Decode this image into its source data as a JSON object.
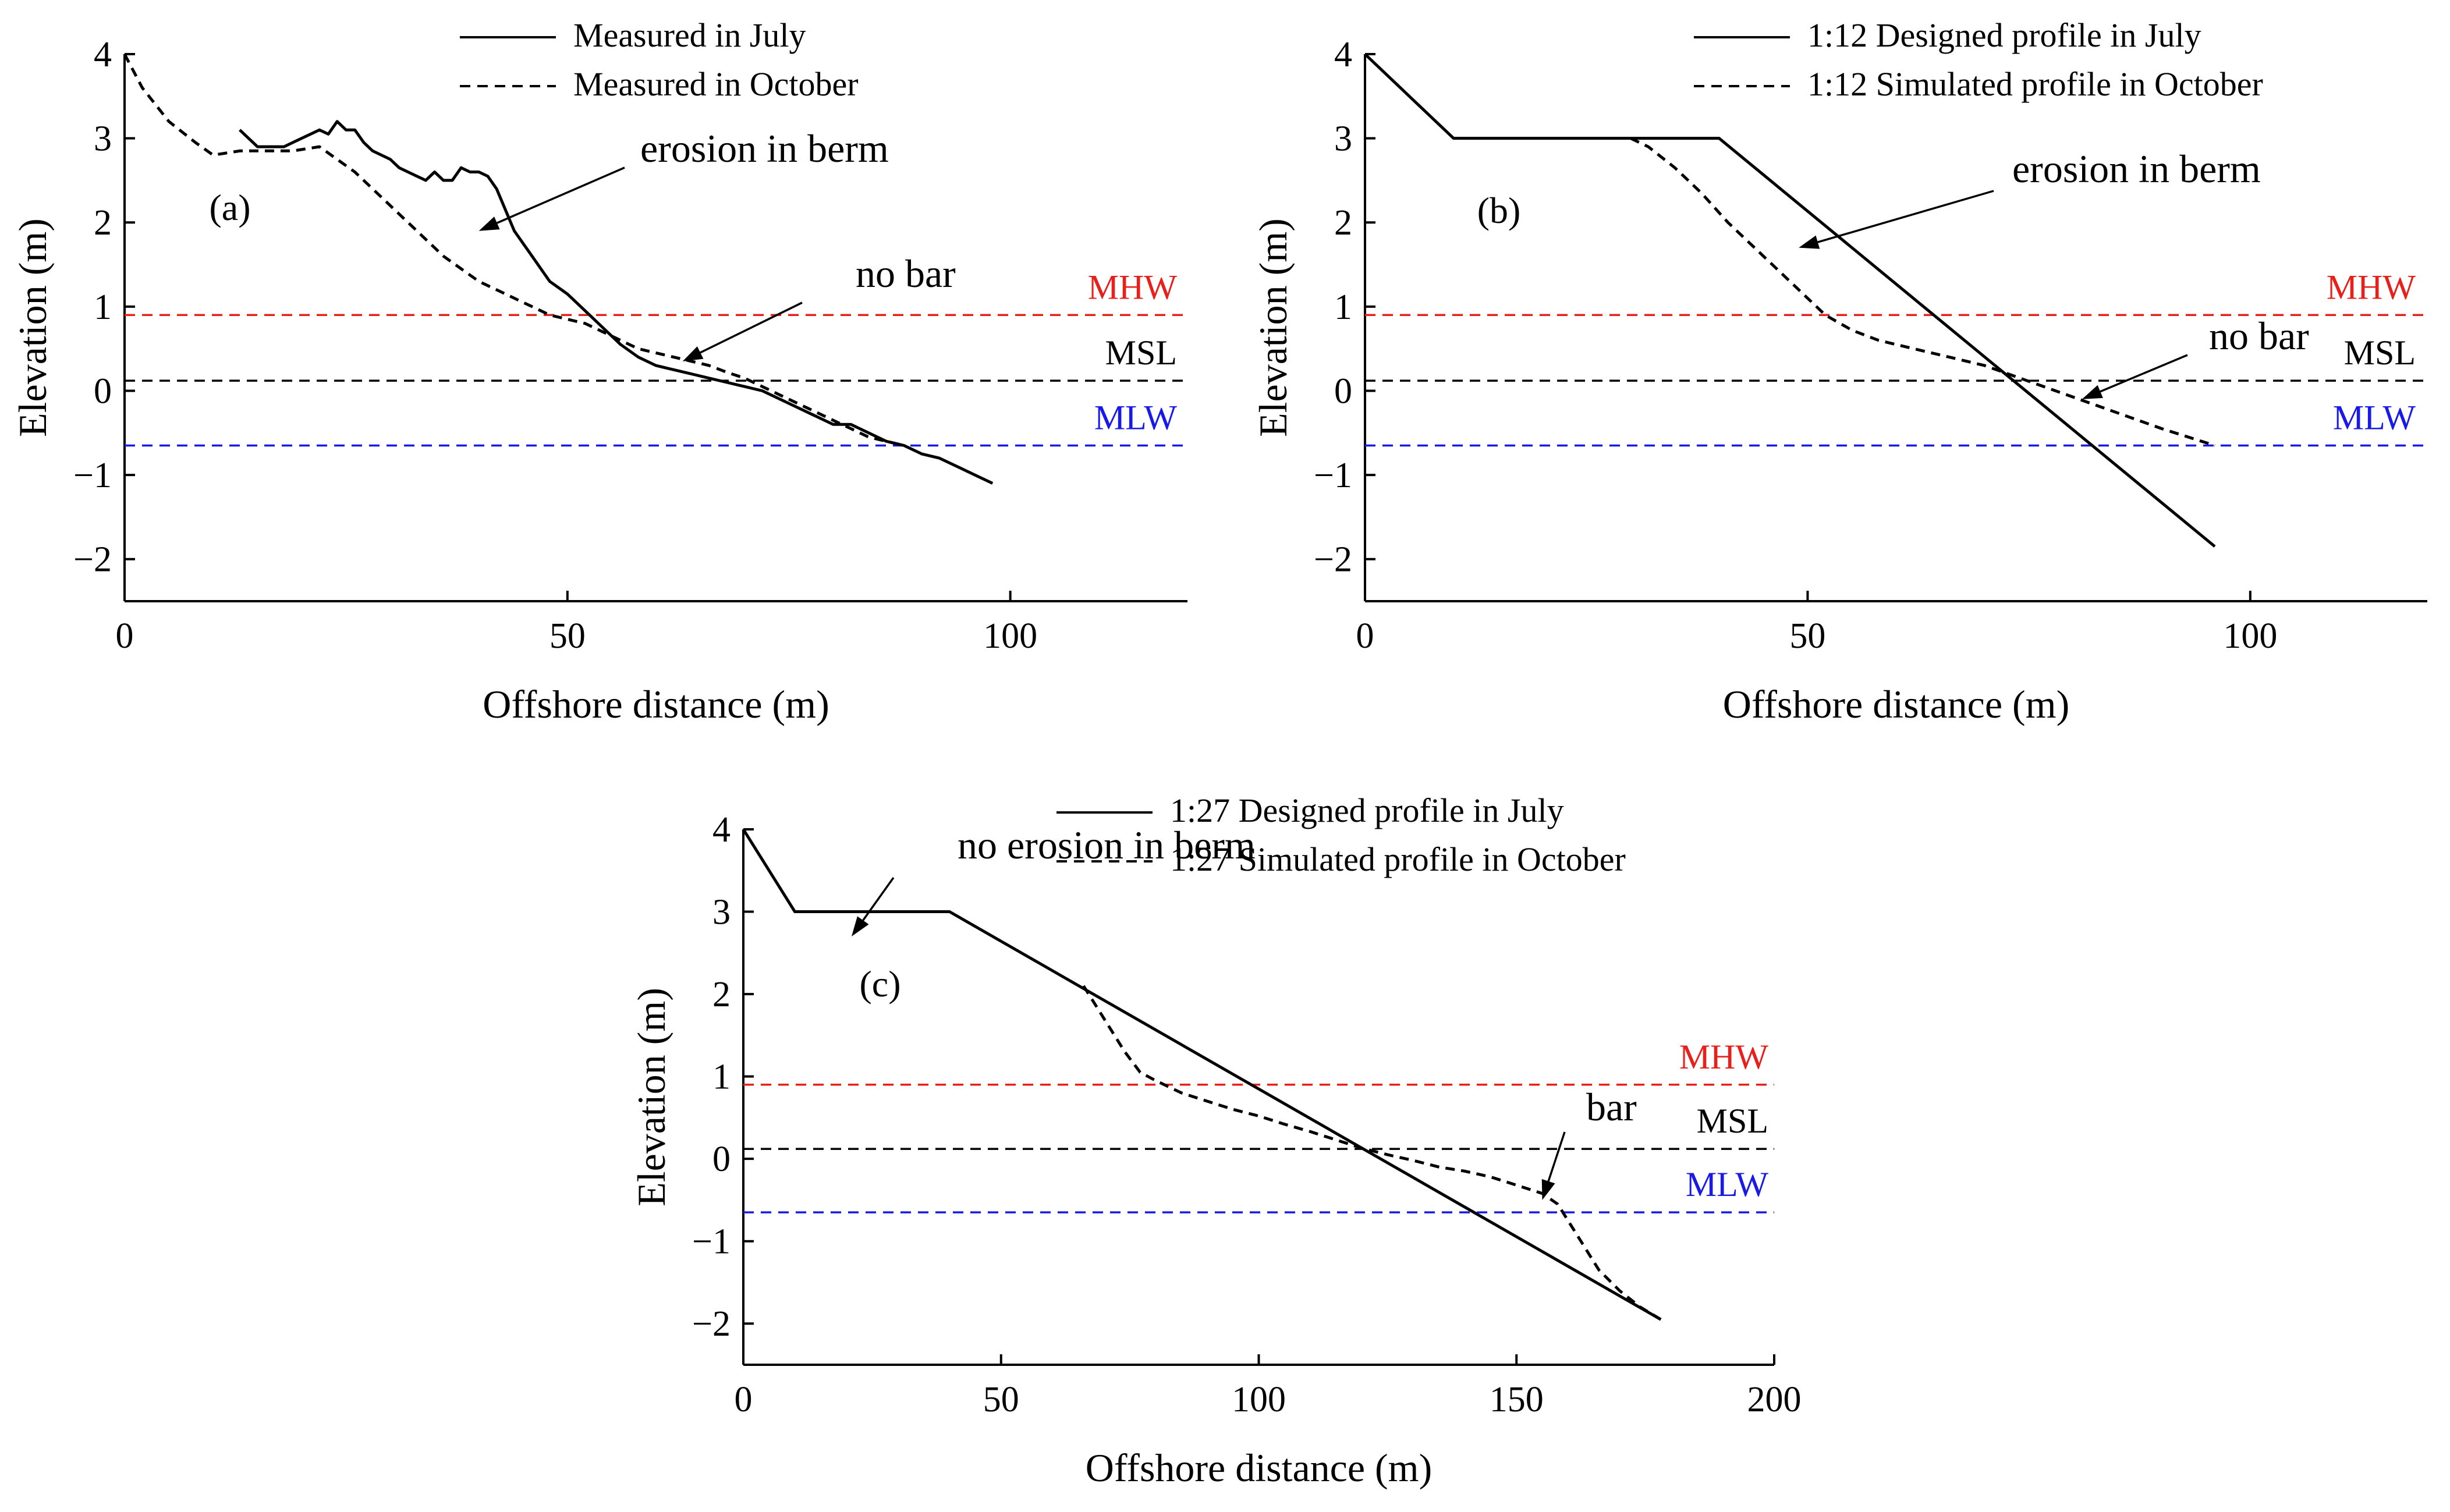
{
  "chart_data": [
    {
      "type": "line",
      "panel": "(a)",
      "xlabel": "Offshore distance (m)",
      "ylabel": "Elevation (m)",
      "xlim": [
        0,
        120
      ],
      "ylim": [
        -2.5,
        4
      ],
      "xticks": [
        0,
        50,
        100
      ],
      "yticks": [
        -2,
        -1,
        0,
        1,
        2,
        3,
        4
      ],
      "series": [
        {
          "name": "Measured in July",
          "style": "solid",
          "x": [
            13,
            15,
            18,
            20,
            22,
            23,
            24,
            25,
            26,
            27,
            28,
            29,
            30,
            31,
            32,
            33,
            34,
            35,
            36,
            37,
            38,
            39,
            40,
            41,
            42,
            44,
            46,
            48,
            50,
            52,
            54,
            56,
            58,
            60,
            62,
            64,
            66,
            68,
            70,
            72,
            74,
            76,
            78,
            80,
            82,
            84,
            86,
            88,
            90,
            92,
            94,
            96,
            98
          ],
          "y": [
            3.1,
            2.9,
            2.9,
            3.0,
            3.1,
            3.05,
            3.2,
            3.1,
            3.1,
            2.95,
            2.85,
            2.8,
            2.75,
            2.65,
            2.6,
            2.55,
            2.5,
            2.6,
            2.5,
            2.5,
            2.65,
            2.6,
            2.6,
            2.55,
            2.4,
            1.9,
            1.6,
            1.3,
            1.15,
            0.95,
            0.75,
            0.55,
            0.4,
            0.3,
            0.25,
            0.2,
            0.15,
            0.1,
            0.05,
            0.0,
            -0.1,
            -0.2,
            -0.3,
            -0.4,
            -0.4,
            -0.5,
            -0.6,
            -0.65,
            -0.75,
            -0.8,
            -0.9,
            -1.0,
            -1.1
          ]
        },
        {
          "name": "Measured in October",
          "style": "dashed",
          "x": [
            0,
            2,
            5,
            8,
            10,
            13,
            16,
            19,
            22,
            24,
            26,
            28,
            30,
            32,
            34,
            36,
            38,
            40,
            42,
            44,
            46,
            48,
            50,
            52,
            54,
            56,
            58,
            60,
            62,
            64,
            66,
            68,
            70,
            72,
            74,
            76,
            78,
            80,
            82,
            84,
            86,
            88
          ],
          "y": [
            4.0,
            3.6,
            3.2,
            2.95,
            2.8,
            2.85,
            2.85,
            2.85,
            2.9,
            2.75,
            2.6,
            2.4,
            2.2,
            2.0,
            1.8,
            1.6,
            1.45,
            1.3,
            1.2,
            1.1,
            1.0,
            0.9,
            0.85,
            0.8,
            0.7,
            0.6,
            0.5,
            0.45,
            0.4,
            0.35,
            0.3,
            0.22,
            0.15,
            0.05,
            -0.05,
            -0.15,
            -0.25,
            -0.35,
            -0.45,
            -0.55,
            -0.6,
            -0.65
          ]
        }
      ],
      "reference_lines": [
        {
          "label": "MHW",
          "y": 0.9,
          "color": "#e8201c"
        },
        {
          "label": "MSL",
          "y": 0.12,
          "color": "#000000"
        },
        {
          "label": "MLW",
          "y": -0.65,
          "color": "#1a1ae6"
        }
      ],
      "annotations": [
        {
          "text": "erosion in berm",
          "arrow_to": [
            40,
            1.9
          ]
        },
        {
          "text": "no bar",
          "arrow_to": [
            63,
            0.35
          ]
        }
      ]
    },
    {
      "type": "line",
      "panel": "(b)",
      "xlabel": "Offshore distance (m)",
      "ylabel": "Elevation (m)",
      "xlim": [
        0,
        120
      ],
      "ylim": [
        -2.5,
        4
      ],
      "xticks": [
        0,
        50,
        100
      ],
      "yticks": [
        -2,
        -1,
        0,
        1,
        2,
        3,
        4
      ],
      "series": [
        {
          "name": "1:12 Designed profile in July",
          "style": "solid",
          "x": [
            0,
            10,
            40,
            96
          ],
          "y": [
            4.0,
            3.0,
            3.0,
            -1.85
          ]
        },
        {
          "name": "1:12 Simulated profile in October",
          "style": "dashed",
          "x": [
            30,
            32,
            35,
            38,
            41,
            44,
            47,
            50,
            52,
            55,
            58,
            62,
            66,
            70,
            74,
            78,
            82,
            86,
            90,
            93,
            96
          ],
          "y": [
            3.0,
            2.9,
            2.65,
            2.35,
            2.0,
            1.7,
            1.4,
            1.1,
            0.9,
            0.72,
            0.6,
            0.5,
            0.4,
            0.3,
            0.15,
            0.0,
            -0.15,
            -0.3,
            -0.45,
            -0.55,
            -0.65
          ]
        }
      ],
      "reference_lines": [
        {
          "label": "MHW",
          "y": 0.9,
          "color": "#e8201c"
        },
        {
          "label": "MSL",
          "y": 0.12,
          "color": "#000000"
        },
        {
          "label": "MLW",
          "y": -0.65,
          "color": "#1a1ae6"
        }
      ],
      "annotations": [
        {
          "text": "erosion in berm",
          "arrow_to": [
            49,
            1.7
          ]
        },
        {
          "text": "no bar",
          "arrow_to": [
            81,
            -0.1
          ]
        }
      ]
    },
    {
      "type": "line",
      "panel": "(c)",
      "xlabel": "Offshore distance (m)",
      "ylabel": "Elevation (m)",
      "xlim": [
        0,
        200
      ],
      "ylim": [
        -2.5,
        4
      ],
      "xticks": [
        0,
        50,
        100,
        150,
        200
      ],
      "yticks": [
        -2,
        -1,
        0,
        1,
        2,
        3,
        4
      ],
      "series": [
        {
          "name": "1:27 Designed profile in July",
          "style": "solid",
          "x": [
            0,
            10,
            40,
            178
          ],
          "y": [
            4.0,
            3.0,
            3.0,
            -1.95
          ]
        },
        {
          "name": "1:27 Simulated profile in October",
          "style": "dashed",
          "x": [
            66,
            68,
            71,
            74,
            77,
            80,
            85,
            90,
            95,
            100,
            105,
            110,
            115,
            120,
            125,
            130,
            135,
            140,
            145,
            150,
            155,
            158,
            160,
            163,
            166,
            170,
            174,
            178
          ],
          "y": [
            2.1,
            1.9,
            1.6,
            1.3,
            1.05,
            0.95,
            0.8,
            0.7,
            0.6,
            0.52,
            0.42,
            0.33,
            0.23,
            0.13,
            0.05,
            -0.02,
            -0.1,
            -0.15,
            -0.22,
            -0.32,
            -0.42,
            -0.55,
            -0.75,
            -1.05,
            -1.35,
            -1.6,
            -1.8,
            -1.95
          ]
        }
      ],
      "reference_lines": [
        {
          "label": "MHW",
          "y": 0.9,
          "color": "#e8201c"
        },
        {
          "label": "MSL",
          "y": 0.12,
          "color": "#000000"
        },
        {
          "label": "MLW",
          "y": -0.65,
          "color": "#1a1ae6"
        }
      ],
      "annotations": [
        {
          "text": "no erosion in berm",
          "arrow_to": [
            21,
            2.7
          ]
        },
        {
          "text": "bar",
          "arrow_to": [
            155,
            -0.5
          ]
        }
      ]
    }
  ]
}
